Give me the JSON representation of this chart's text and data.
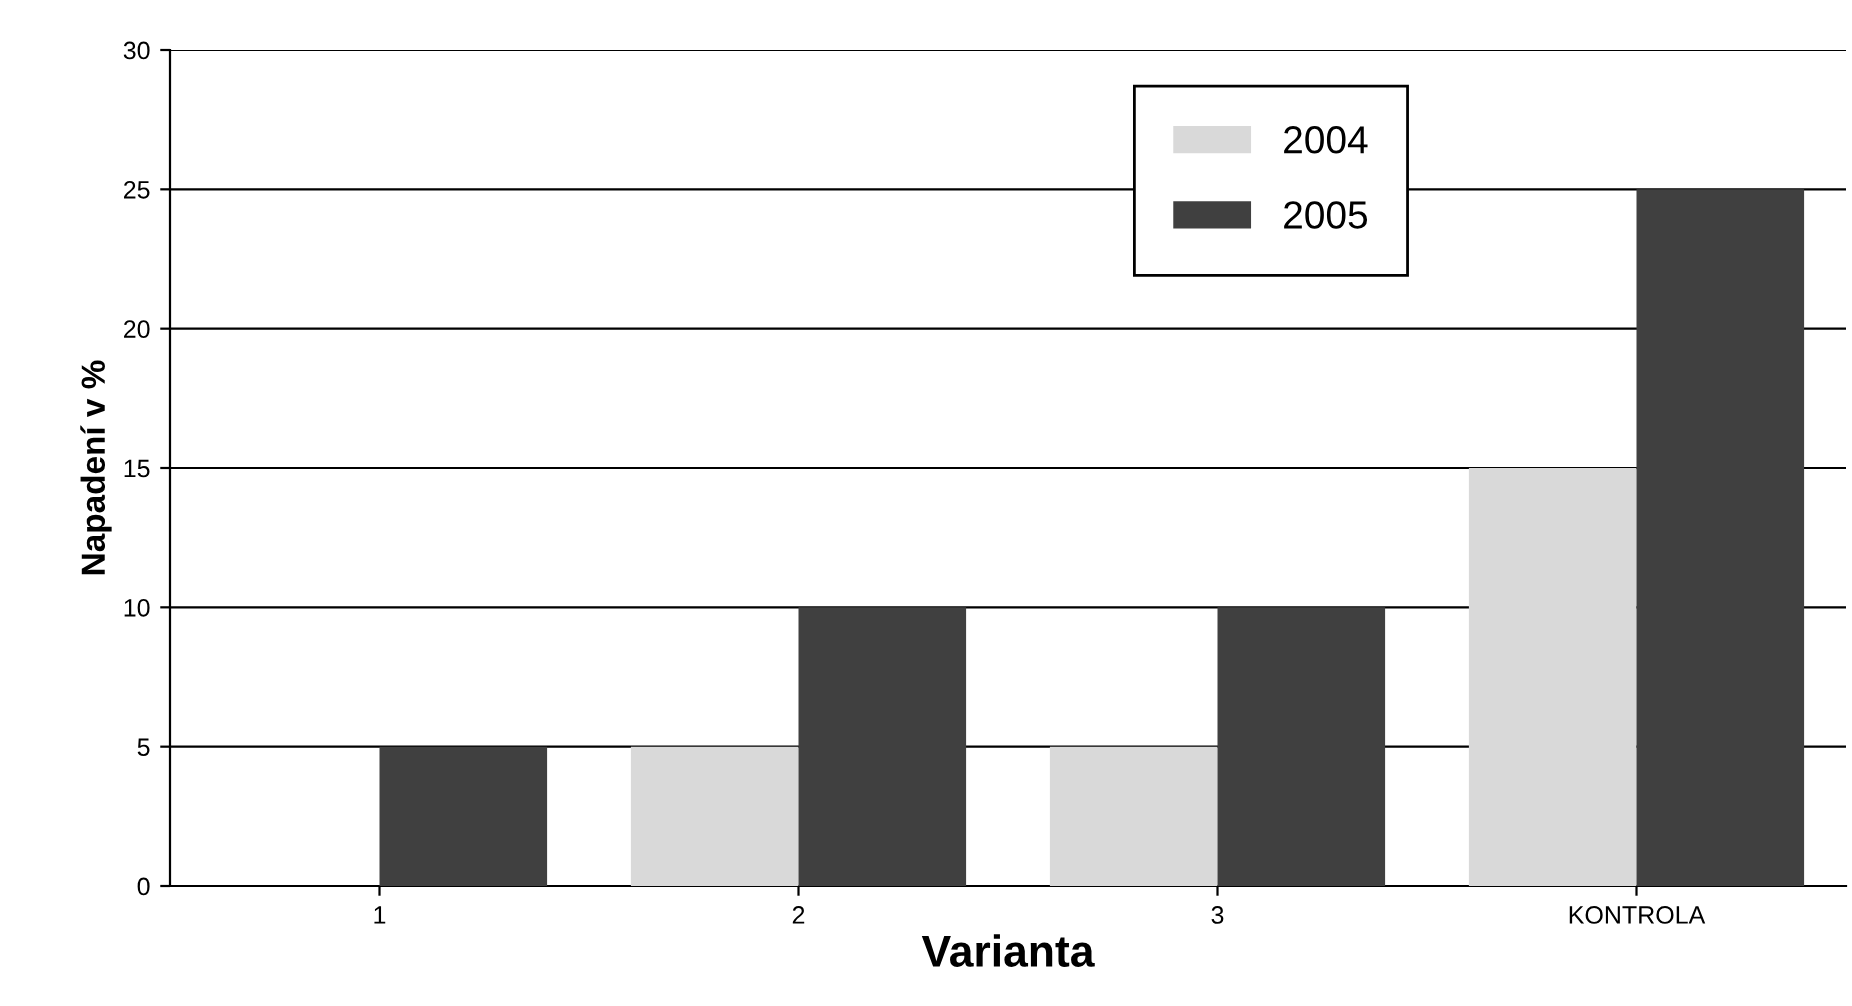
{
  "chart_data": {
    "type": "bar",
    "xlabel": "Varianta",
    "ylabel": "Napadení v %",
    "categories": [
      "1",
      "2",
      "3",
      "KONTROLA"
    ],
    "series": [
      {
        "name": "2004",
        "color": "#d9d9d9",
        "values": [
          0,
          5,
          5,
          15
        ]
      },
      {
        "name": "2005",
        "color": "#404040",
        "values": [
          5,
          10,
          10,
          25
        ]
      }
    ],
    "ylim": [
      0,
      30
    ],
    "yticks": [
      0,
      5,
      10,
      15,
      20,
      25,
      30
    ],
    "grid": "y",
    "legend": "top right"
  }
}
